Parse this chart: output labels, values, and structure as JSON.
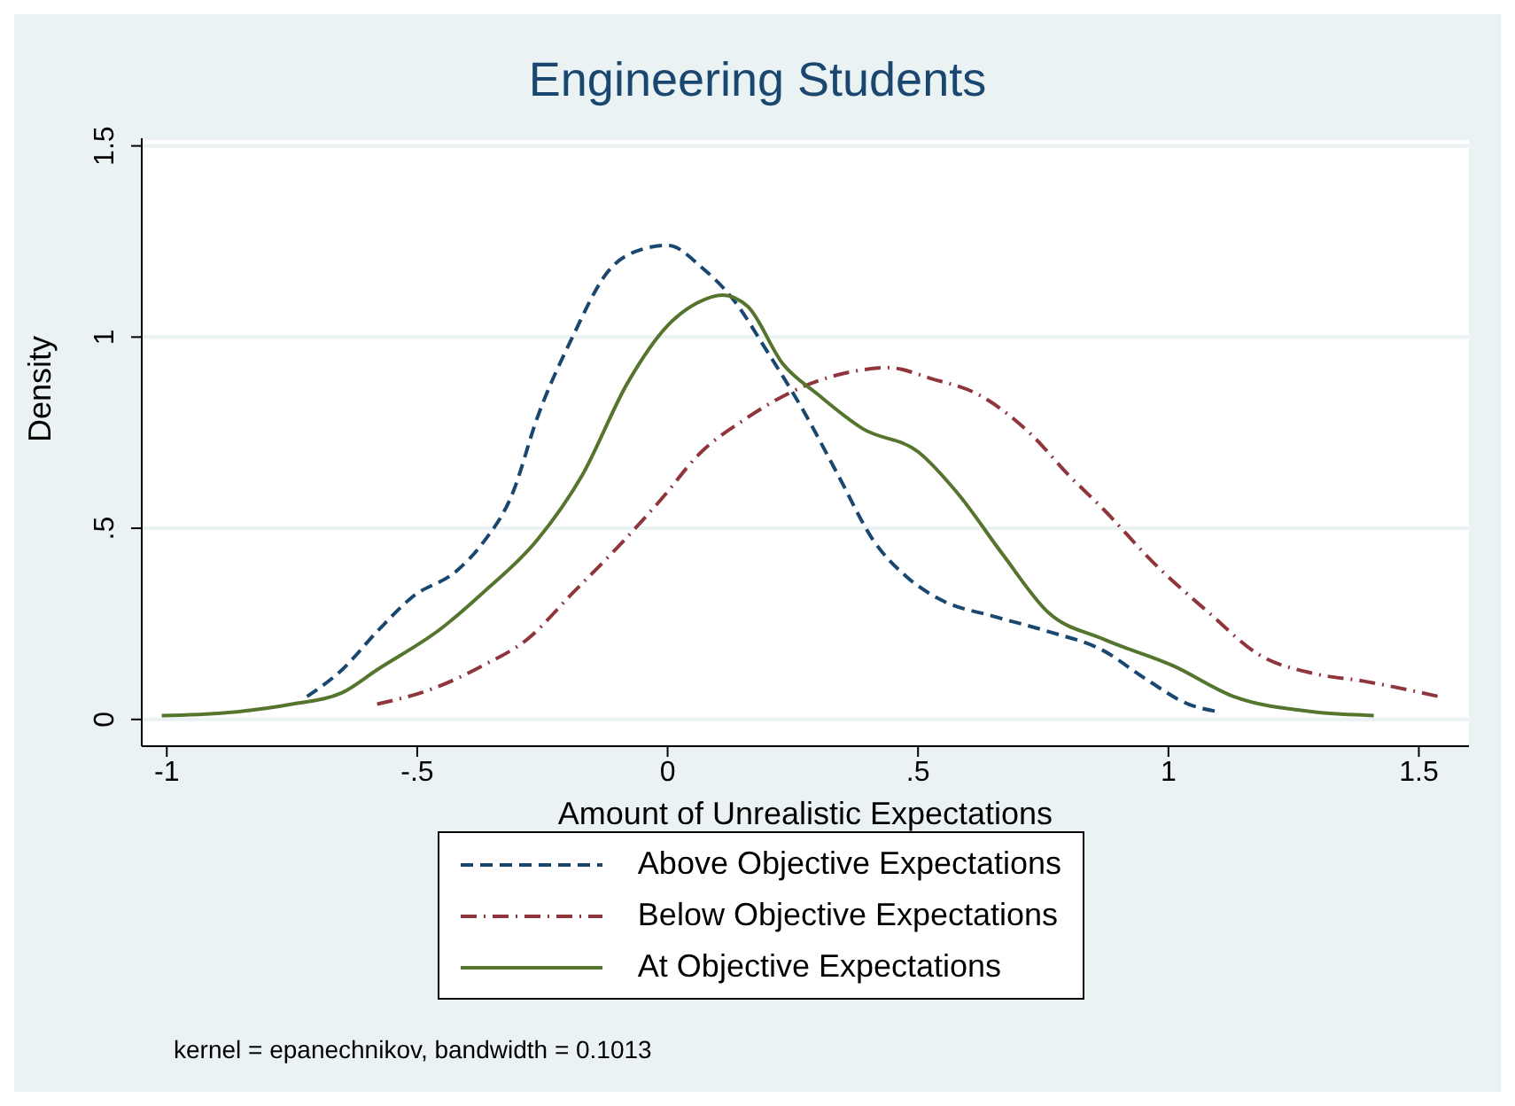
{
  "chart_data": {
    "type": "line",
    "title": "Engineering Students",
    "xlabel": "Amount of Unrealistic Expectations",
    "ylabel": "Density",
    "xlim": [
      -1.05,
      1.6
    ],
    "ylim": [
      -0.07,
      1.52
    ],
    "xticks": [
      -1,
      {
        "value": -0.5,
        "label": "-.5"
      },
      0,
      {
        "value": 0.5,
        "label": ".5"
      },
      1,
      1.5
    ],
    "yticks": [
      0,
      {
        "value": 0.5,
        "label": ".5"
      },
      1,
      1.5
    ],
    "grid": "y",
    "legend": "bottom",
    "marker": "none",
    "annotations": [
      "kernel = epanechnikov, bandwidth = 0.1013"
    ],
    "series": [
      {
        "name": "Above Objective Expectations",
        "color": "#1a476f",
        "line_style": "dashed",
        "x": [
          -0.72,
          -0.65,
          -0.58,
          -0.51,
          -0.42,
          -0.37,
          -0.31,
          -0.26,
          -0.19,
          -0.12,
          -0.05,
          0,
          0.07,
          0.13,
          0.2,
          0.27,
          0.34,
          0.41,
          0.48,
          0.55,
          0.65,
          0.76,
          0.87,
          0.95,
          1.04,
          1.1
        ],
        "values": [
          0.06,
          0.13,
          0.23,
          0.32,
          0.39,
          0.46,
          0.59,
          0.79,
          1.0,
          1.17,
          1.23,
          1.24,
          1.18,
          1.1,
          0.96,
          0.81,
          0.64,
          0.47,
          0.37,
          0.31,
          0.27,
          0.23,
          0.18,
          0.11,
          0.04,
          0.02
        ]
      },
      {
        "name": "Below Objective Expectations",
        "color": "#90353b",
        "line_style": "dashdot",
        "x": [
          -0.58,
          -0.47,
          -0.37,
          -0.28,
          -0.19,
          -0.1,
          -0.01,
          0.06,
          0.16,
          0.27,
          0.37,
          0.44,
          0.53,
          0.62,
          0.73,
          0.8,
          0.87,
          0.97,
          1.08,
          1.18,
          1.29,
          1.39,
          1.54
        ],
        "values": [
          0.04,
          0.08,
          0.14,
          0.21,
          0.33,
          0.45,
          0.58,
          0.69,
          0.79,
          0.87,
          0.91,
          0.92,
          0.89,
          0.85,
          0.74,
          0.64,
          0.55,
          0.41,
          0.28,
          0.17,
          0.12,
          0.1,
          0.06
        ]
      },
      {
        "name": "At Objective Expectations",
        "color": "#55752f",
        "line_style": "solid",
        "x": [
          -1.01,
          -0.86,
          -0.75,
          -0.65,
          -0.58,
          -0.45,
          -0.37,
          -0.26,
          -0.17,
          -0.08,
          0,
          0.06,
          0.11,
          0.16,
          0.23,
          0.3,
          0.39,
          0.5,
          0.58,
          0.67,
          0.76,
          0.87,
          1.01,
          1.13,
          1.29,
          1.41
        ],
        "values": [
          0.01,
          0.02,
          0.04,
          0.07,
          0.13,
          0.24,
          0.33,
          0.47,
          0.64,
          0.88,
          1.03,
          1.09,
          1.11,
          1.08,
          0.93,
          0.85,
          0.76,
          0.7,
          0.59,
          0.43,
          0.28,
          0.21,
          0.14,
          0.06,
          0.02,
          0.01
        ]
      }
    ]
  }
}
